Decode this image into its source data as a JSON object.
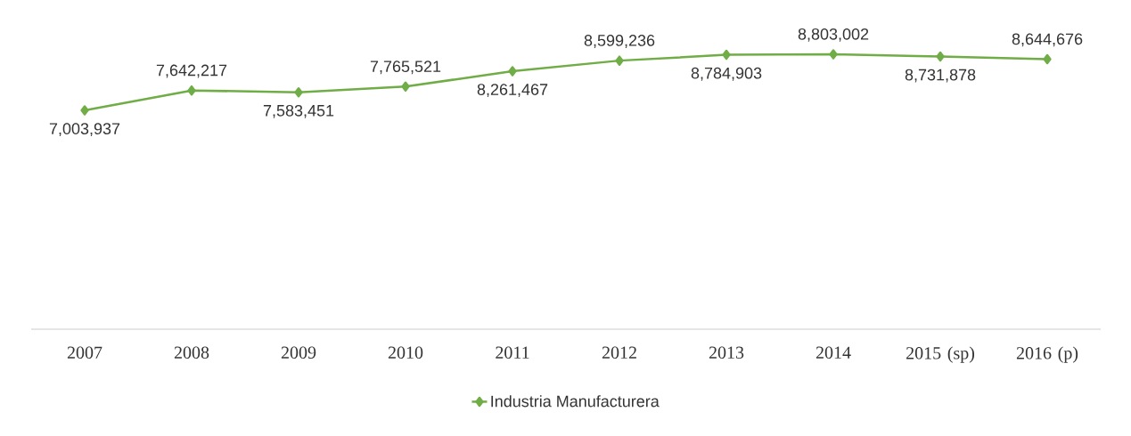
{
  "chart_data": {
    "type": "line",
    "categories": [
      "2007",
      "2008",
      "2009",
      "2010",
      "2011",
      "2012",
      "2013",
      "2014",
      "2015 (sp)",
      "2016 (p)"
    ],
    "series": [
      {
        "name": "Industria Manufacturera",
        "color": "#70ad47",
        "values": [
          7003937,
          7642217,
          7583451,
          7765521,
          8261467,
          8599236,
          8784903,
          8803002,
          8731878,
          8644676
        ],
        "value_labels": [
          "7,003,937",
          "7,642,217",
          "7,583,451",
          "7,765,521",
          "8,261,467",
          "8,599,236",
          "8,784,903",
          "8,803,002",
          "8,731,878",
          "8,644,676"
        ]
      }
    ],
    "marker": "diamond",
    "line_style": "solid",
    "legend": "bottom",
    "tick_labels": "x"
  }
}
